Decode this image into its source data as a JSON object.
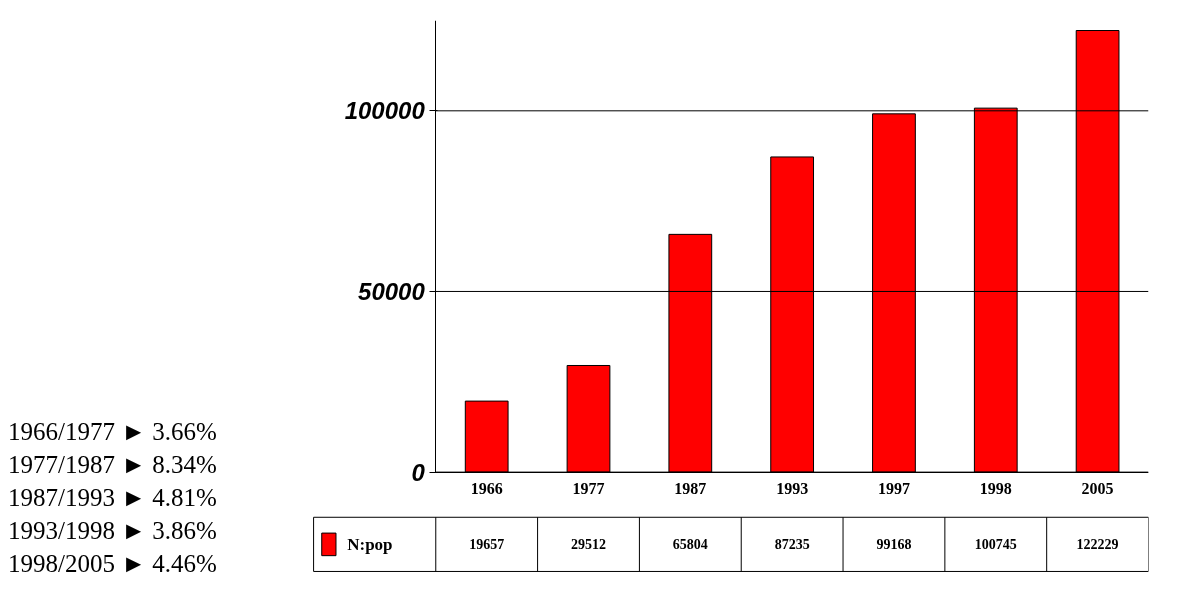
{
  "chart_data": {
    "type": "bar",
    "categories": [
      "1966",
      "1977",
      "1987",
      "1993",
      "1997",
      "1998",
      "2005"
    ],
    "series": [
      {
        "name": "N:pop",
        "color": "#ff0000",
        "values": [
          19657,
          29512,
          65804,
          87235,
          99168,
          100745,
          122229
        ]
      }
    ],
    "ylim": [
      0,
      125000
    ],
    "yticks": [
      {
        "value": 0,
        "label": "0"
      },
      {
        "value": 50000,
        "label": "50000"
      },
      {
        "value": 100000,
        "label": "100000"
      }
    ],
    "grid": "y",
    "data_labels": true,
    "annotations": [
      "1966/1977 ► 3.66%",
      "1977/1987 ► 8.34%",
      "1987/1993 ► 4.81%",
      "1993/1998 ► 3.86%",
      "1998/2005 ► 4.46%"
    ]
  }
}
